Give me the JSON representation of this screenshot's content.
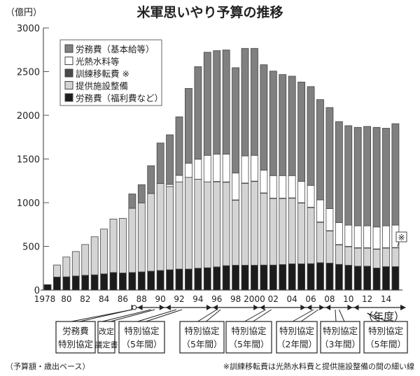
{
  "chart_data": {
    "type": "bar",
    "stacked": true,
    "title": "米軍思いやり予算の推移",
    "ylabel": "（億円）",
    "xlabel": "（年度）",
    "ylim": [
      0,
      3000
    ],
    "yticks": [
      0,
      500,
      1000,
      1500,
      2000,
      2500,
      3000
    ],
    "categories": [
      1978,
      1979,
      1980,
      1981,
      1982,
      1983,
      1984,
      1985,
      1986,
      1987,
      1988,
      1989,
      1990,
      1991,
      1992,
      1993,
      1994,
      1995,
      1996,
      1997,
      1998,
      1999,
      2000,
      2001,
      2002,
      2003,
      2004,
      2005,
      2006,
      2007,
      2008,
      2009,
      2010,
      2011,
      2012,
      2013,
      2014,
      2015
    ],
    "xtick_labels": [
      "1978",
      "80",
      "82",
      "84",
      "86",
      "88",
      "90",
      "92",
      "94",
      "96",
      "98",
      "2000",
      "02",
      "04",
      "06",
      "08",
      "10",
      "12",
      "14"
    ],
    "legend_position": "top-left",
    "series": [
      {
        "name": "労務費（福利費など）",
        "color": "#1c1c1c",
        "values": [
          62,
          149,
          151,
          161,
          169,
          174,
          185,
          201,
          195,
          201,
          208,
          216,
          224,
          232,
          240,
          240,
          250,
          255,
          265,
          279,
          284,
          284,
          284,
          286,
          286,
          292,
          300,
          300,
          302,
          313,
          308,
          294,
          284,
          273,
          273,
          252,
          268,
          268
        ]
      },
      {
        "name": "提供施設整備",
        "color": "#d4d4d4",
        "values": [
          0,
          138,
          227,
          280,
          352,
          436,
          513,
          612,
          626,
          735,
          790,
          889,
          996,
          953,
          998,
          1050,
          1019,
          983,
          973,
          954,
          743,
          936,
          958,
          821,
          761,
          755,
          750,
          695,
          641,
          461,
          367,
          222,
          211,
          206,
          206,
          214,
          211,
          214
        ]
      },
      {
        "name": "訓練移転費 ※",
        "color": "#4a4a4a",
        "values": [
          0,
          0,
          0,
          0,
          0,
          0,
          0,
          0,
          0,
          0,
          0,
          0,
          0,
          0,
          0,
          0,
          0,
          0,
          5,
          5,
          5,
          5,
          5,
          5,
          5,
          5,
          5,
          5,
          5,
          5,
          5,
          5,
          5,
          5,
          5,
          5,
          5,
          5
        ]
      },
      {
        "name": "光熱水料等",
        "color": "#ffffff",
        "values": [
          0,
          0,
          0,
          0,
          0,
          0,
          0,
          0,
          0,
          0,
          0,
          0,
          0,
          24,
          75,
          161,
          229,
          304,
          312,
          317,
          307,
          310,
          295,
          261,
          258,
          258,
          255,
          243,
          250,
          253,
          253,
          252,
          243,
          251,
          251,
          251,
          251,
          256
        ]
      },
      {
        "name": "労務費（基本給等）",
        "color": "#808080",
        "values": [
          0,
          0,
          0,
          0,
          0,
          0,
          0,
          0,
          0,
          164,
          208,
          318,
          463,
          568,
          670,
          857,
          1059,
          1180,
          1185,
          1193,
          1206,
          1231,
          1224,
          1206,
          1196,
          1157,
          1138,
          1138,
          1131,
          1148,
          1156,
          1155,
          1138,
          1127,
          1138,
          1140,
          1117,
          1161
        ]
      }
    ],
    "legend_order": [
      4,
      3,
      2,
      1,
      0
    ],
    "callout": "※",
    "agreements": [
      {
        "lines": [
          "労務費",
          "特別協定"
        ],
        "year": 1987
      },
      {
        "lines": [
          "改定",
          "議定書"
        ],
        "year": 1990
      },
      {
        "lines": [
          "特別協定",
          "（5年間）"
        ],
        "year": 1991
      },
      {
        "lines": [
          "特別協定",
          "（5年間）"
        ],
        "year": 1996
      },
      {
        "lines": [
          "特別協定",
          "（5年間）"
        ],
        "year": 2001
      },
      {
        "lines": [
          "特別協定",
          "（2年間）"
        ],
        "year": 2006
      },
      {
        "lines": [
          "特別協定",
          "（3年間）"
        ],
        "year": 2008
      },
      {
        "lines": [
          "特別協定",
          "（5年間）"
        ],
        "year": 2011
      }
    ],
    "note_left": "（予算額・歳出ベース）",
    "note_right": "※訓練移転費は光熱水料費と提供施設整備の間の細い線"
  }
}
